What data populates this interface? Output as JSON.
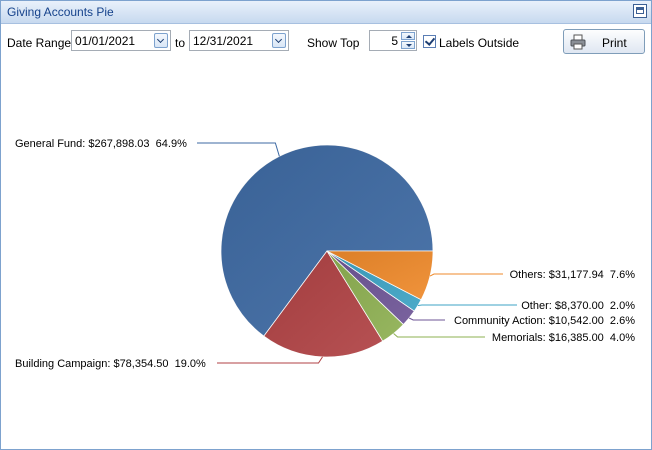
{
  "window": {
    "title": "Giving Accounts Pie"
  },
  "toolbar": {
    "date_range_label": "Date Range",
    "start_date": "01/01/2021",
    "to_label": "to",
    "end_date": "12/31/2021",
    "show_top_label": "Show Top",
    "show_top_value": "5",
    "labels_outside_label": "Labels Outside",
    "labels_outside_checked": true,
    "print_label": "Print"
  },
  "chart_data": {
    "type": "pie",
    "slices": [
      {
        "label": "General Fund: $267,898.03  64.9%",
        "value": 64.9,
        "color": "#3e6aa3"
      },
      {
        "label": "Building Campaign: $78,354.50  19.0%",
        "value": 19.0,
        "color": "#b04244"
      },
      {
        "label": "Memorials: $16,385.00  4.0%",
        "value": 4.0,
        "color": "#8eb052"
      },
      {
        "label": "Community Action: $10,542.00  2.6%",
        "value": 2.6,
        "color": "#6e5596"
      },
      {
        "label": "Other: $8,370.00  2.0%",
        "value": 2.0,
        "color": "#3da3c4"
      },
      {
        "label": "Others: $31,177.94  7.6%",
        "value": 7.6,
        "color": "#ef8a2b"
      }
    ]
  }
}
